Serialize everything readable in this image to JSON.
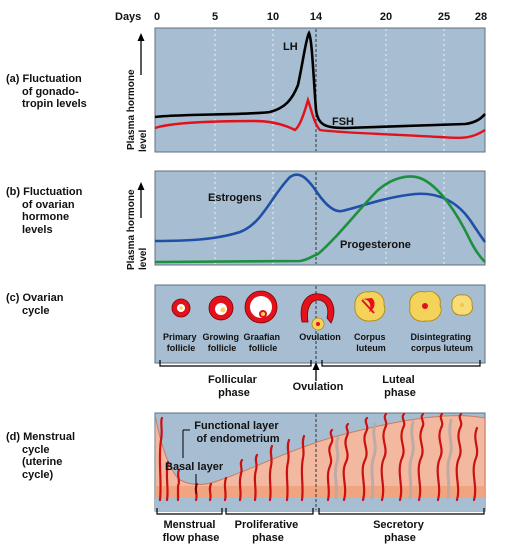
{
  "days": {
    "label": "Days",
    "ticks": [
      "0",
      "5",
      "10",
      "14",
      "20",
      "25",
      "28"
    ]
  },
  "colors": {
    "panel": "#a7bdd1",
    "lh": "#000000",
    "fsh": "#e3111b",
    "estrogens": "#1f4fa6",
    "progesterone": "#1e8f3e",
    "follicle": "#e3111b",
    "corpus_luteum": "#f3d35a",
    "endometrium": "#f2b9a0",
    "vessels": "#cc1010",
    "basal": "#f0a07a"
  },
  "panels": {
    "a": {
      "label_lines": [
        "(a) Fluctuation",
        "of gonado-",
        "tropin levels"
      ],
      "axis_lines": [
        "Plasma hormone",
        "level"
      ],
      "lh": "LH",
      "fsh": "FSH"
    },
    "b": {
      "label_lines": [
        "(b) Fluctuation",
        "of ovarian",
        "hormone",
        "levels"
      ],
      "axis_lines": [
        "Plasma hormone",
        "level"
      ],
      "estrogens": "Estrogens",
      "progesterone": "Progesterone"
    },
    "c": {
      "label_lines": [
        "(c) Ovarian",
        "cycle"
      ],
      "stages": [
        {
          "lines": [
            "Primary",
            "follicle"
          ]
        },
        {
          "lines": [
            "Growing",
            "follicle"
          ]
        },
        {
          "lines": [
            "Graafian",
            "follicle"
          ]
        },
        {
          "lines": [
            "Ovulation"
          ]
        },
        {
          "lines": [
            "Corpus",
            "luteum"
          ]
        },
        {
          "lines": [
            "Disintegrating",
            "corpus luteum"
          ]
        }
      ],
      "phases": {
        "follicular": [
          "Follicular",
          "phase"
        ],
        "ovulation": "Ovulation",
        "luteal": [
          "Luteal",
          "phase"
        ]
      }
    },
    "d": {
      "label_lines": [
        "(d) Menstrual",
        "cycle",
        "(uterine",
        "cycle)"
      ],
      "functional_layer": [
        "Functional layer",
        "of endometrium"
      ],
      "basal_layer": "Basal layer",
      "phases": {
        "menstrual": [
          "Menstrual",
          "flow phase"
        ],
        "proliferative": [
          "Proliferative",
          "phase"
        ],
        "secretory": [
          "Secretory",
          "phase"
        ]
      }
    }
  }
}
